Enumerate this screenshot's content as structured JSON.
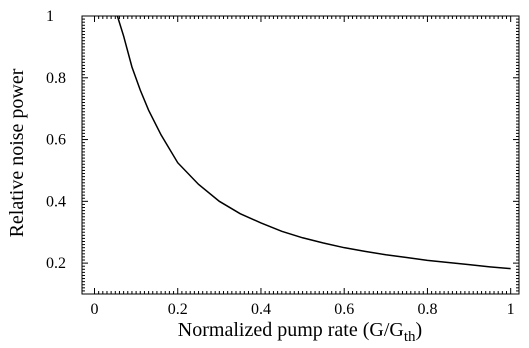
{
  "chart_data": {
    "type": "line",
    "title": "",
    "xlabel": "Normalized pump rate (G/G",
    "xlabel_subscript": "th",
    "xlabel_suffix": ")",
    "ylabel": "Relative noise power",
    "xlim": [
      -0.03,
      1.02
    ],
    "ylim": [
      0.1,
      1.0
    ],
    "x_ticks": [
      0,
      0.2,
      0.4,
      0.6,
      0.8,
      1
    ],
    "x_tick_labels": [
      "0",
      "0.2",
      "0.4",
      "0.6",
      "0.8",
      "1"
    ],
    "y_ticks": [
      0.2,
      0.4,
      0.6,
      0.8,
      1
    ],
    "y_tick_labels": [
      "0.2",
      "0.4",
      "0.6",
      "0.8",
      "1"
    ],
    "grid": false,
    "series": [
      {
        "x": [
          0.055,
          0.07,
          0.09,
          0.11,
          0.13,
          0.16,
          0.2,
          0.25,
          0.3,
          0.35,
          0.4,
          0.45,
          0.5,
          0.55,
          0.6,
          0.65,
          0.7,
          0.75,
          0.8,
          0.85,
          0.9,
          0.95,
          1.0
        ],
        "y": [
          1.0,
          0.935,
          0.835,
          0.76,
          0.695,
          0.615,
          0.525,
          0.455,
          0.4,
          0.36,
          0.33,
          0.303,
          0.282,
          0.265,
          0.25,
          0.238,
          0.227,
          0.218,
          0.209,
          0.202,
          0.195,
          0.188,
          0.182
        ]
      }
    ]
  }
}
